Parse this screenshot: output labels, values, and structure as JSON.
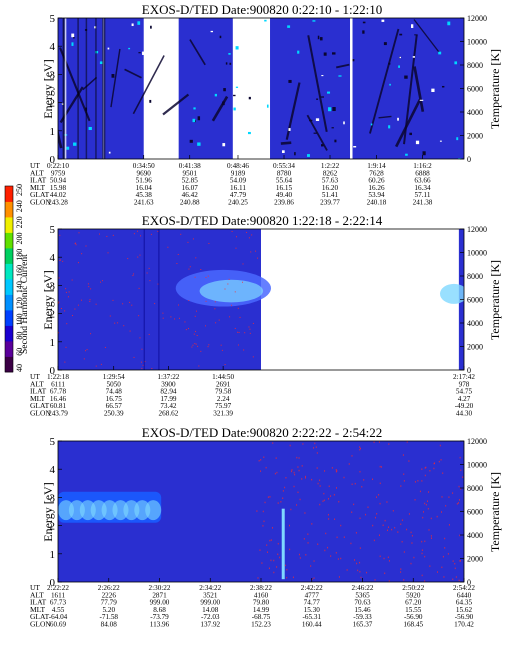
{
  "colorbar": {
    "label": "Second Harmonic Current",
    "ticks": [
      "40",
      "60",
      "80",
      "100",
      "120",
      "140",
      "160",
      "180",
      "200",
      "220",
      "240",
      "250"
    ],
    "colors": [
      "#3b0045",
      "#5a009a",
      "#1a00d0",
      "#0040ff",
      "#0090ff",
      "#00c8ff",
      "#00e8c0",
      "#00d060",
      "#60e000",
      "#f0f000",
      "#ff9000",
      "#ff2000"
    ]
  },
  "colors": {
    "background_fill": "#2a2fd0",
    "accent_fill": "#4a68ff",
    "hot_trace": "#ff2a2a",
    "band": "#7fd8ff"
  },
  "chart_data": [
    {
      "type": "heatmap",
      "title": "EXOS-D/TED   Date:900820   0:22:10 - 1:22:10",
      "ylabel": "Energy [eV]",
      "y2label": "Temperature [K]",
      "ylim": [
        0,
        5
      ],
      "y2lim": [
        0,
        12000
      ],
      "yticks": [
        "0",
        "1",
        "2",
        "3",
        "4",
        "5"
      ],
      "y2ticks": [
        "0",
        "2000",
        "4000",
        "6000",
        "8000",
        "10000",
        "12000"
      ],
      "row_labels": [
        "UT",
        "ALT",
        "ILAT",
        "MLT",
        "GLAT",
        "GLON"
      ],
      "columns": [
        [
          "0:22:10",
          "9759",
          "50.94",
          "15.98",
          "44.02",
          "243.28"
        ],
        [
          "0:34:50",
          "9690",
          "51.96",
          "16.04",
          "45.38",
          "241.63"
        ],
        [
          "0:41:38",
          "9501",
          "52.85",
          "16.07",
          "46.42",
          "240.88"
        ],
        [
          "0:48:46",
          "9189",
          "54.09",
          "16.11",
          "47.79",
          "240.25"
        ],
        [
          "0:55:34",
          "8780",
          "55.64",
          "16.15",
          "49.40",
          "239.86"
        ],
        [
          "1:2:22",
          "8262",
          "57.63",
          "16.20",
          "51.41",
          "239.77"
        ],
        [
          "1:9:14",
          "7628",
          "60.26",
          "16.26",
          "53.94",
          "240.18"
        ],
        [
          "1:16:2",
          "6888",
          "63.66",
          "16.34",
          "57.11",
          "241.38"
        ]
      ],
      "blank_segments": [
        [
          "0:34:50",
          "0:40:00"
        ],
        [
          "0:48:00",
          "0:53:30"
        ]
      ]
    },
    {
      "type": "heatmap",
      "title": "EXOS-D/TED   Date:900820   1:22:18 - 2:22:14",
      "ylabel": "Energy [eV]",
      "y2label": "Temperature [K]",
      "ylim": [
        0,
        5
      ],
      "y2lim": [
        0,
        12000
      ],
      "yticks": [
        "0",
        "1",
        "2",
        "3",
        "4",
        "5"
      ],
      "y2ticks": [
        "0",
        "2000",
        "4000",
        "6000",
        "8000",
        "10000",
        "12000"
      ],
      "row_labels": [
        "UT",
        "ALT",
        "ILAT",
        "MLT",
        "GLAT",
        "GLON"
      ],
      "columns": [
        [
          "1:22:18",
          "6111",
          "67.78",
          "16.46",
          "60.81",
          "243.79"
        ],
        [
          "1:29:54",
          "5050",
          "74.48",
          "16.75",
          "66.57",
          "250.39"
        ],
        [
          "1:37:22",
          "3900",
          "82.94",
          "17.99",
          "73.42",
          "268.62"
        ],
        [
          "1:44:50",
          "2691",
          "79.58",
          "2.24",
          "75.97",
          "321.39"
        ],
        [
          "2:17:42",
          "978",
          "54.75",
          "4.27",
          "-49.20",
          "44.30"
        ]
      ],
      "blank_segments": [
        [
          "1:50:00",
          "2:17:00"
        ]
      ]
    },
    {
      "type": "heatmap",
      "title": "EXOS-D/TED   Date:900820   2:22:22 - 2:54:22",
      "ylabel": "Energy [eV]",
      "y2label": "Temperature [K]",
      "ylim": [
        0,
        5
      ],
      "y2lim": [
        0,
        12000
      ],
      "yticks": [
        "0",
        "1",
        "2",
        "3",
        "4",
        "5"
      ],
      "y2ticks": [
        "0",
        "2000",
        "4000",
        "6000",
        "8000",
        "10000",
        "12000"
      ],
      "row_labels": [
        "UT",
        "ALT",
        "ILAT",
        "MLT",
        "GLAT",
        "GLON"
      ],
      "columns": [
        [
          "2:22:22",
          "1611",
          "67.73",
          "4.55",
          "-64.04",
          "60.69"
        ],
        [
          "2:26:22",
          "2226",
          "77.79",
          "5.20",
          "-71.58",
          "84.08"
        ],
        [
          "2:30:22",
          "2871",
          "999.00",
          "8.68",
          "-73.79",
          "113.96"
        ],
        [
          "2:34:22",
          "3521",
          "999.00",
          "14.08",
          "-72.03",
          "137.92"
        ],
        [
          "2:38:22",
          "4160",
          "79.80",
          "14.99",
          "-68.75",
          "152.23"
        ],
        [
          "2:42:22",
          "4777",
          "74.77",
          "15.30",
          "-65.31",
          "160.44"
        ],
        [
          "2:46:22",
          "5365",
          "70.63",
          "15.46",
          "-59.33",
          "165.37"
        ],
        [
          "2:50:22",
          "5920",
          "67.20",
          "15.55",
          "-56.90",
          "168.45"
        ],
        [
          "2:54:22",
          "6440",
          "64.35",
          "15.62",
          "-56.90",
          "170.42"
        ]
      ],
      "blank_segments": []
    }
  ]
}
